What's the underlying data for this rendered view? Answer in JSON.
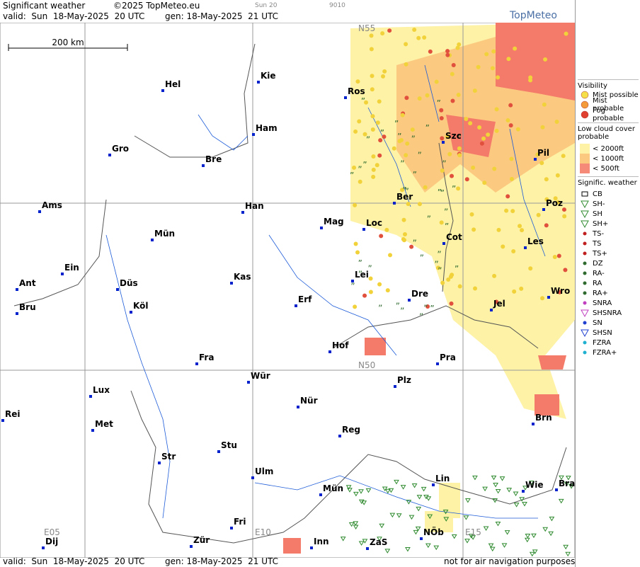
{
  "header": {
    "title": "Significant weather",
    "copyright": "©2025 TopMeteo.eu",
    "run": "Sun 20",
    "code": "9010",
    "brand": "TopMeteo",
    "valid": "valid:  Sun  18-May-2025  20 UTC",
    "gen": "gen: 18-May-2025  21 UTC"
  },
  "footer": {
    "valid": "valid:  Sun  18-May-2025  20 UTC",
    "gen": "gen: 18-May-2025  21 UTC",
    "disclaimer": "not for air navigation purposes"
  },
  "scale": "200 km",
  "grid_labels": [
    "N55",
    "N50",
    "E05",
    "E10",
    "E15"
  ],
  "cities": [
    "Hel",
    "Kie",
    "Ros",
    "Ham",
    "Gro",
    "Bre",
    "Szc",
    "Pil",
    "Ams",
    "Han",
    "Mag",
    "Loc",
    "Ber",
    "Poz",
    "Mün",
    "Cot",
    "Les",
    "Ein",
    "Kas",
    "Lei",
    "Ant",
    "Düs",
    "Wro",
    "Erf",
    "Dre",
    "Jel",
    "Bru",
    "Köl",
    "Hof",
    "Fra",
    "Pra",
    "Wür",
    "Plz",
    "Lux",
    "Nür",
    "Rei",
    "Met",
    "Reg",
    "Brn",
    "Stu",
    "Str",
    "Ulm",
    "Lin",
    "Wie",
    "Bra",
    "Mün",
    "Fri",
    "NÖb",
    "Dij",
    "Zür",
    "Inn",
    "ZaS"
  ],
  "legend": {
    "visibility": {
      "title": "Visibility",
      "items": [
        "Mist possible",
        "Mist probable",
        "Fog probable"
      ]
    },
    "low_cloud": {
      "title": "Low cloud cover probable",
      "items": [
        "< 2000ft",
        "< 1000ft",
        "<  500ft"
      ]
    },
    "weather": {
      "title": "Signific. weather",
      "items": [
        "CB",
        "SH-",
        "SH",
        "SH+",
        "TS-",
        "TS",
        "TS+",
        "DZ",
        "RA-",
        "RA",
        "RA+",
        "SNRA",
        "SHSNRA",
        "SN",
        "SHSN",
        "FZRA",
        "FZRA+"
      ]
    }
  }
}
